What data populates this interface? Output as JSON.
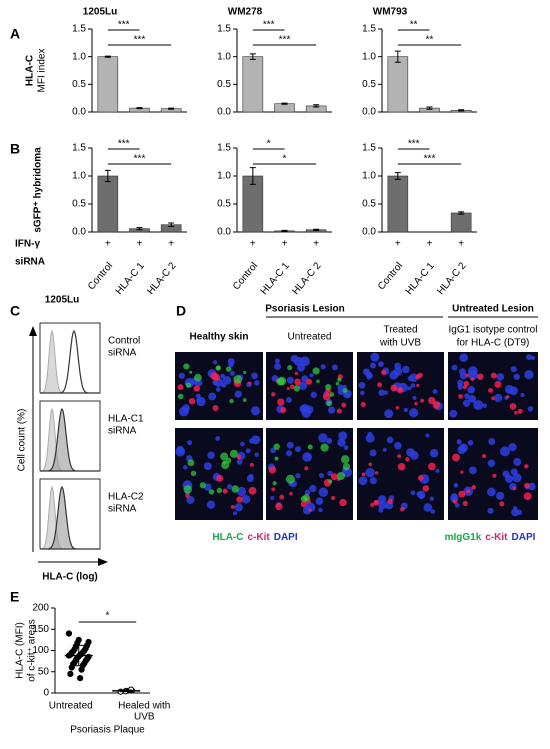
{
  "panel_labels": [
    "A",
    "B",
    "C",
    "D",
    "E"
  ],
  "row_labels": {
    "ifn": "IFN-γ",
    "sirna": "siRNA"
  },
  "chart_data": [
    {
      "type": "bar",
      "title": "1205Lu",
      "ylabel": [
        "HLA-C",
        "MFI index"
      ],
      "categories": [
        null,
        null,
        null
      ],
      "values": [
        1.0,
        0.07,
        0.06
      ],
      "errors": [
        0.01,
        0.01,
        0.01
      ],
      "color": "#b3b3b3",
      "ylim": [
        0,
        1.5
      ],
      "yticks": [
        {
          "value": 0,
          "label": "0.0"
        },
        0.5,
        {
          "value": 1,
          "label": "1.0"
        },
        1.5
      ],
      "annotations": [
        "***",
        "***"
      ]
    },
    {
      "type": "bar",
      "title": "WM278",
      "categories": [
        null,
        null,
        null
      ],
      "values": [
        1.0,
        0.15,
        0.11
      ],
      "errors": [
        0.05,
        0.01,
        0.02
      ],
      "color": "#b3b3b3",
      "ylim": [
        0,
        1.5
      ],
      "yticks": [
        {
          "value": 0,
          "label": "0.0"
        },
        0.5,
        {
          "value": 1,
          "label": "1.0"
        },
        1.5
      ],
      "annotations": [
        "***",
        "***"
      ]
    },
    {
      "type": "bar",
      "title": "WM793",
      "categories": [
        null,
        null,
        null
      ],
      "values": [
        1.0,
        0.07,
        0.03
      ],
      "errors": [
        0.1,
        0.02,
        0.01
      ],
      "color": "#b3b3b3",
      "ylim": [
        0,
        1.5
      ],
      "yticks": [
        {
          "value": 0,
          "label": "0.0"
        },
        0.5,
        {
          "value": 1,
          "label": "1.0"
        },
        1.5
      ],
      "annotations": [
        "**",
        "**"
      ]
    },
    {
      "type": "bar",
      "ylabel": [
        "sGFP⁺ hybridoma"
      ],
      "categories": [
        "Control",
        "HLA-C 1",
        "HLA-C 2"
      ],
      "treatment": [
        "+",
        "+",
        "+"
      ],
      "values": [
        1.0,
        0.06,
        0.13
      ],
      "errors": [
        0.1,
        0.02,
        0.03
      ],
      "color": "#6e6e6e",
      "ylim": [
        0,
        1.5
      ],
      "yticks": [
        {
          "value": 0,
          "label": "0.0"
        },
        0.5,
        {
          "value": 1,
          "label": "1.0"
        },
        1.5
      ],
      "annotations": [
        "***",
        "***"
      ]
    },
    {
      "type": "bar",
      "categories": [
        "Control",
        "HLA-C 1",
        "HLA-C 2"
      ],
      "treatment": [
        "+",
        "+",
        "+"
      ],
      "values": [
        1.0,
        0.02,
        0.04
      ],
      "errors": [
        0.15,
        0.01,
        0.01
      ],
      "color": "#6e6e6e",
      "ylim": [
        0,
        1.5
      ],
      "yticks": [
        {
          "value": 0,
          "label": "0.0"
        },
        0.5,
        {
          "value": 1,
          "label": "1.0"
        },
        1.5
      ],
      "annotations": [
        "*",
        "*"
      ]
    },
    {
      "type": "bar",
      "categories": [
        "Control",
        "HLA-C 1",
        "HLA-C 2"
      ],
      "treatment": [
        "+",
        "+",
        "+"
      ],
      "values": [
        1.0,
        0.0,
        0.34
      ],
      "errors": [
        0.06,
        0.0,
        0.02
      ],
      "color": "#6e6e6e",
      "ylim": [
        0,
        1.5
      ],
      "yticks": [
        {
          "value": 0,
          "label": "0.0"
        },
        0.5,
        {
          "value": 1,
          "label": "1.0"
        },
        1.5
      ],
      "annotations": [
        "***",
        "***"
      ]
    },
    {
      "type": "strip",
      "categories": [
        "Untreated",
        [
          "Healed with",
          "UVB"
        ]
      ],
      "xlabel": "Psoriasis Plaque",
      "ylabel": [
        "HLA-C (MFI)",
        "of c-kit⁺ areas"
      ],
      "values": [
        [
          140,
          125,
          120,
          118,
          112,
          110,
          105,
          103,
          100,
          98,
          96,
          95,
          92,
          90,
          90,
          88,
          86,
          85,
          83,
          80,
          78,
          76,
          72,
          70,
          68,
          65,
          60,
          55,
          45,
          35
        ],
        [
          3,
          5,
          6,
          4,
          8
        ]
      ],
      "mean": [
        88,
        5
      ],
      "sd": [
        24,
        2
      ],
      "ylim": [
        0,
        200
      ],
      "yticks": [
        0,
        50,
        100,
        150,
        200
      ],
      "annotations": [
        "*"
      ]
    }
  ],
  "panel_c": {
    "title": "1205Lu",
    "samples": [
      [
        "Control",
        "siRNA"
      ],
      [
        "HLA-C1",
        "siRNA"
      ],
      [
        "HLA-C2",
        "siRNA"
      ]
    ],
    "ylabel": "Cell count (%)",
    "xlabel": "HLA-C (log)"
  },
  "panel_d": {
    "group_headers": [
      "Psoriasis Lesion",
      "Untreated Lesion"
    ],
    "columns": [
      "Healthy skin",
      "Untreated",
      [
        "Treated",
        "with UVB"
      ],
      [
        "IgG1 isotype control",
        "for HLA-C (DT9)"
      ]
    ],
    "legend_left": [
      "HLA-C",
      "c-Kit",
      "DAPI"
    ],
    "legend_right": [
      "mIgG1k",
      "c-Kit",
      "DAPI"
    ]
  }
}
